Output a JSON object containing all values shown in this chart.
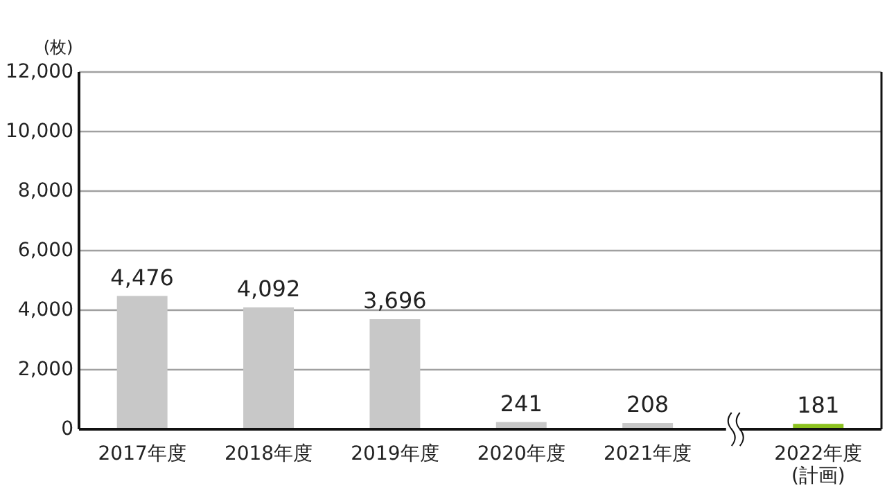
{
  "chart_data": {
    "type": "bar",
    "ylabel": "(枚)",
    "categories": [
      "2017年度",
      "2018年度",
      "2019年度",
      "2020年度",
      "2021年度",
      "2022年度\n(計画)"
    ],
    "values": [
      4476,
      4092,
      3696,
      241,
      208,
      181
    ],
    "colors": [
      "#c8c8c8",
      "#c8c8c8",
      "#c8c8c8",
      "#c8c8c8",
      "#c8c8c8",
      "#8cc21f"
    ],
    "value_labels": [
      "4,476",
      "4,092",
      "3,696",
      "241",
      "208",
      "181"
    ],
    "ylim": [
      0,
      12000
    ],
    "yticks": [
      {
        "value": 0,
        "label": "0"
      },
      {
        "value": 2000,
        "label": "2,000"
      },
      {
        "value": 4000,
        "label": "4,000"
      },
      {
        "value": 6000,
        "label": "6,000"
      },
      {
        "value": 8000,
        "label": "8,000"
      },
      {
        "value": 10000,
        "label": "10,000"
      },
      {
        "value": 12000,
        "label": "12,000"
      }
    ],
    "grid": "y"
  }
}
